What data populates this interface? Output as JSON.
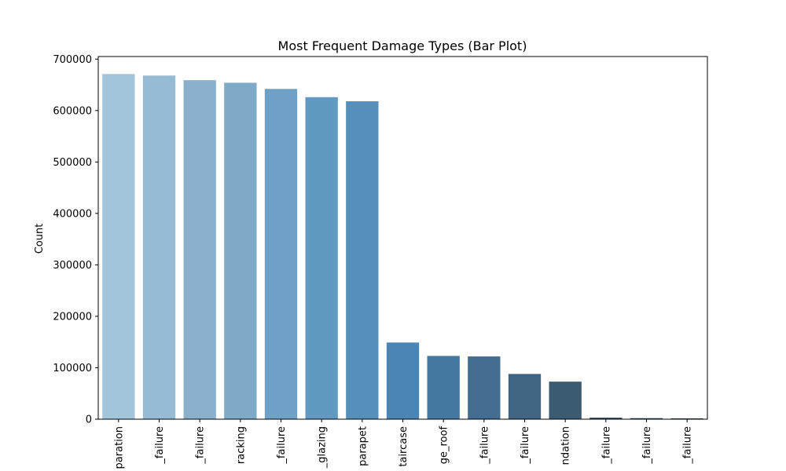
{
  "chart_data": {
    "type": "bar",
    "title": "Most Frequent Damage Types (Bar Plot)",
    "xlabel": "",
    "ylabel": "Count",
    "ylim": [
      0,
      705000
    ],
    "yticks": [
      0,
      100000,
      200000,
      300000,
      400000,
      500000,
      600000,
      700000
    ],
    "ytick_labels": [
      "0",
      "100000",
      "200000",
      "300000",
      "400000",
      "500000",
      "600000",
      "700000"
    ],
    "categories": [
      "paration",
      "_failure",
      "_failure",
      "racking",
      "_failure",
      "_glazing",
      "parapet",
      "taircase",
      "ge_roof",
      "_failure",
      "_failure",
      "ndation",
      "_failure",
      "_failure",
      "_failure"
    ],
    "values": [
      671000,
      668000,
      659000,
      654000,
      642000,
      626000,
      618000,
      149000,
      123000,
      122000,
      88000,
      73000,
      3000,
      2000,
      1500
    ],
    "colors": [
      "#a3c5dc",
      "#97bad5",
      "#8ab0cd",
      "#7eaac8",
      "#6fa1c6",
      "#6299c0",
      "#568fba",
      "#4a85b5",
      "#4478a1",
      "#436e92",
      "#3f6583",
      "#3b5b72",
      "#375265",
      "#33495b",
      "#2f404f"
    ],
    "grid": false,
    "legend": "none"
  }
}
